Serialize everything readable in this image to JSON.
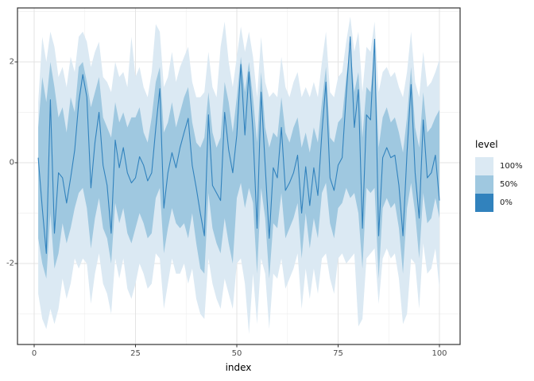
{
  "axis": {
    "x_title": "index",
    "x_ticks": [
      "0",
      "25",
      "50",
      "75",
      "100"
    ],
    "y_ticks": [
      "2",
      "0",
      "-2"
    ]
  },
  "legend": {
    "title": "level",
    "items": [
      {
        "label": "100%",
        "color": "#dbe9f3"
      },
      {
        "label": "50%",
        "color": "#9fc8e0"
      },
      {
        "label": "0%",
        "color": "#3182bd"
      }
    ]
  },
  "chart_data": {
    "type": "area",
    "subtype": "fan-chart: median line with 50% and 100% level ribbons",
    "title": "",
    "xlabel": "index",
    "ylabel": "",
    "xlim": [
      -5,
      105
    ],
    "ylim": [
      -3.6,
      3.07
    ],
    "x_tick_values": [
      0,
      25,
      50,
      75,
      100
    ],
    "y_tick_values": [
      -2,
      0,
      2
    ],
    "minor_x": [
      12.5,
      37.5,
      62.5,
      87.5
    ],
    "minor_y": [
      -3,
      -1,
      1,
      3
    ],
    "grid": true,
    "legend_position": "right",
    "colors": {
      "line": "#3182bd",
      "band50": "#9fc8e0",
      "band100": "#dbe9f3",
      "grid_major": "#e3e3e3",
      "grid_minor": "#efefef",
      "panel_border": "#333333"
    },
    "x": [
      1,
      2,
      3,
      4,
      5,
      6,
      7,
      8,
      9,
      10,
      11,
      12,
      13,
      14,
      15,
      16,
      17,
      18,
      19,
      20,
      21,
      22,
      23,
      24,
      25,
      26,
      27,
      28,
      29,
      30,
      31,
      32,
      33,
      34,
      35,
      36,
      37,
      38,
      39,
      40,
      41,
      42,
      43,
      44,
      45,
      46,
      47,
      48,
      49,
      50,
      51,
      52,
      53,
      54,
      55,
      56,
      57,
      58,
      59,
      60,
      61,
      62,
      63,
      64,
      65,
      66,
      67,
      68,
      69,
      70,
      71,
      72,
      73,
      74,
      75,
      76,
      77,
      78,
      79,
      80,
      81,
      82,
      83,
      84,
      85,
      86,
      87,
      88,
      89,
      90,
      91,
      92,
      93,
      94,
      95,
      96,
      97,
      98,
      99,
      100
    ],
    "series": [
      {
        "name": "line",
        "values": [
          0.1,
          -0.9,
          -1.8,
          1.25,
          -1.4,
          -0.2,
          -0.3,
          -0.8,
          -0.3,
          0.25,
          1.2,
          1.75,
          1.3,
          -0.5,
          0.4,
          1.0,
          -0.05,
          -0.45,
          -1.4,
          0.45,
          -0.1,
          0.3,
          -0.2,
          -0.4,
          -0.3,
          0.12,
          -0.05,
          -0.36,
          -0.2,
          0.68,
          1.47,
          -0.9,
          -0.2,
          0.2,
          -0.1,
          0.3,
          0.6,
          0.88,
          -0.05,
          -0.5,
          -1.0,
          -1.45,
          0.95,
          -0.45,
          -0.6,
          -0.75,
          1.0,
          0.25,
          -0.2,
          0.55,
          1.95,
          0.55,
          1.8,
          0.6,
          -1.3,
          1.4,
          -0.05,
          -1.5,
          -0.1,
          -0.3,
          0.7,
          -0.55,
          -0.4,
          -0.2,
          0.15,
          -1.0,
          -0.08,
          -0.85,
          -0.1,
          -0.65,
          0.6,
          1.6,
          -0.3,
          -0.55,
          -0.05,
          0.1,
          1.35,
          2.5,
          0.7,
          1.45,
          -1.3,
          0.95,
          0.85,
          2.45,
          -1.45,
          0.1,
          0.3,
          0.1,
          0.15,
          -0.45,
          -1.45,
          0.2,
          1.55,
          -0.2,
          -1.1,
          0.85,
          -0.3,
          -0.2,
          0.15,
          -0.75
        ]
      },
      {
        "name": "hi50",
        "values": [
          0.7,
          1.7,
          1.2,
          2.0,
          1.5,
          0.9,
          1.1,
          0.6,
          1.3,
          1.0,
          1.9,
          2.0,
          1.6,
          1.1,
          1.4,
          1.7,
          0.9,
          0.7,
          0.5,
          1.2,
          0.8,
          1.0,
          0.7,
          0.9,
          0.9,
          1.1,
          0.6,
          0.4,
          0.9,
          1.6,
          1.9,
          0.6,
          0.8,
          1.2,
          0.7,
          1.0,
          1.3,
          1.5,
          0.8,
          0.4,
          0.3,
          0.5,
          1.4,
          0.6,
          0.3,
          0.5,
          1.6,
          1.2,
          0.6,
          1.3,
          2.1,
          1.4,
          2.0,
          1.3,
          0.4,
          1.8,
          0.7,
          0.3,
          0.6,
          0.5,
          1.3,
          0.6,
          0.4,
          0.7,
          0.9,
          0.3,
          0.6,
          0.2,
          0.7,
          0.4,
          1.2,
          1.9,
          0.5,
          0.4,
          0.8,
          0.9,
          1.7,
          2.3,
          1.4,
          1.8,
          0.5,
          1.5,
          1.4,
          2.2,
          0.3,
          0.9,
          1.1,
          0.8,
          0.9,
          0.6,
          0.2,
          0.9,
          1.9,
          0.7,
          0.3,
          1.4,
          0.6,
          0.7,
          0.9,
          1.05
        ]
      },
      {
        "name": "lo50",
        "values": [
          -1.5,
          -2.0,
          -2.3,
          -1.0,
          -2.1,
          -1.8,
          -1.2,
          -1.6,
          -1.3,
          -0.9,
          -0.6,
          -0.5,
          -0.9,
          -1.7,
          -1.1,
          -0.7,
          -1.3,
          -1.5,
          -2.0,
          -0.8,
          -1.2,
          -0.9,
          -1.4,
          -1.6,
          -1.3,
          -1.0,
          -1.2,
          -1.5,
          -1.4,
          -0.7,
          -0.5,
          -1.8,
          -1.3,
          -0.9,
          -1.2,
          -1.3,
          -1.2,
          -1.5,
          -1.0,
          -1.6,
          -2.1,
          -2.2,
          -0.6,
          -1.3,
          -1.6,
          -1.8,
          -1.1,
          -1.6,
          -2.0,
          -0.7,
          -0.4,
          -0.9,
          -0.5,
          -0.8,
          -2.2,
          -0.5,
          -1.1,
          -2.3,
          -1.2,
          -1.3,
          -0.6,
          -1.5,
          -1.3,
          -1.1,
          -0.8,
          -1.9,
          -1.0,
          -1.7,
          -1.1,
          -1.5,
          -0.6,
          -0.4,
          -1.2,
          -1.5,
          -0.9,
          -0.8,
          -0.5,
          -0.7,
          -0.6,
          -1.0,
          -2.1,
          -0.5,
          -0.6,
          -0.5,
          -2.3,
          -0.9,
          -0.7,
          -0.9,
          -0.8,
          -1.3,
          -2.2,
          -0.9,
          -0.4,
          -1.0,
          -1.9,
          -0.6,
          -1.2,
          -1.1,
          -0.7,
          -1.1
        ]
      },
      {
        "name": "hi100",
        "values": [
          1.2,
          2.5,
          2.0,
          2.6,
          2.3,
          1.7,
          1.9,
          1.5,
          2.1,
          1.8,
          2.5,
          2.6,
          2.4,
          1.9,
          2.2,
          2.4,
          1.7,
          1.6,
          1.4,
          2.0,
          1.7,
          1.8,
          1.5,
          2.5,
          1.7,
          1.9,
          1.5,
          1.3,
          1.8,
          2.75,
          2.6,
          1.5,
          1.7,
          2.2,
          1.6,
          1.9,
          2.1,
          2.3,
          1.6,
          1.3,
          1.3,
          1.4,
          2.2,
          1.5,
          1.3,
          2.3,
          2.8,
          2.0,
          1.5,
          2.1,
          2.7,
          2.2,
          2.6,
          2.1,
          1.3,
          2.5,
          1.6,
          1.3,
          1.4,
          1.3,
          2.1,
          1.5,
          1.3,
          1.6,
          1.8,
          1.3,
          1.5,
          1.3,
          1.6,
          1.3,
          2.0,
          2.6,
          1.4,
          1.3,
          1.7,
          1.8,
          2.4,
          2.9,
          2.2,
          2.6,
          1.4,
          2.3,
          2.2,
          2.8,
          1.4,
          1.8,
          1.9,
          1.7,
          1.8,
          1.5,
          1.3,
          1.8,
          2.6,
          1.6,
          1.3,
          2.2,
          1.5,
          1.6,
          1.8,
          2.05
        ]
      },
      {
        "name": "lo100",
        "values": [
          -2.6,
          -3.1,
          -3.3,
          -2.9,
          -3.2,
          -2.9,
          -2.3,
          -2.7,
          -2.4,
          -1.9,
          -2.1,
          -1.9,
          -2.0,
          -2.8,
          -2.2,
          -1.8,
          -2.4,
          -2.6,
          -3.0,
          -1.9,
          -2.3,
          -1.9,
          -2.5,
          -2.7,
          -2.4,
          -2.0,
          -2.2,
          -2.5,
          -2.4,
          -1.8,
          -1.9,
          -2.9,
          -2.4,
          -1.9,
          -2.2,
          -2.2,
          -2.0,
          -2.4,
          -2.1,
          -2.7,
          -3.0,
          -3.1,
          -1.9,
          -2.4,
          -2.7,
          -2.9,
          -2.3,
          -2.6,
          -2.9,
          -2.0,
          -1.9,
          -2.4,
          -3.4,
          -2.2,
          -3.2,
          -1.9,
          -2.2,
          -3.3,
          -2.2,
          -2.3,
          -1.9,
          -2.5,
          -2.3,
          -2.1,
          -1.8,
          -2.9,
          -2.1,
          -2.7,
          -2.1,
          -2.6,
          -1.9,
          -1.8,
          -2.3,
          -2.6,
          -1.9,
          -1.8,
          -2.0,
          -1.9,
          -1.8,
          -3.25,
          -3.1,
          -1.9,
          -1.8,
          -1.7,
          -2.8,
          -1.9,
          -1.7,
          -1.9,
          -1.8,
          -2.3,
          -3.2,
          -3.0,
          -1.9,
          -2.0,
          -2.9,
          -1.6,
          -2.2,
          -2.1,
          -1.7,
          -2.5
        ]
      }
    ]
  }
}
